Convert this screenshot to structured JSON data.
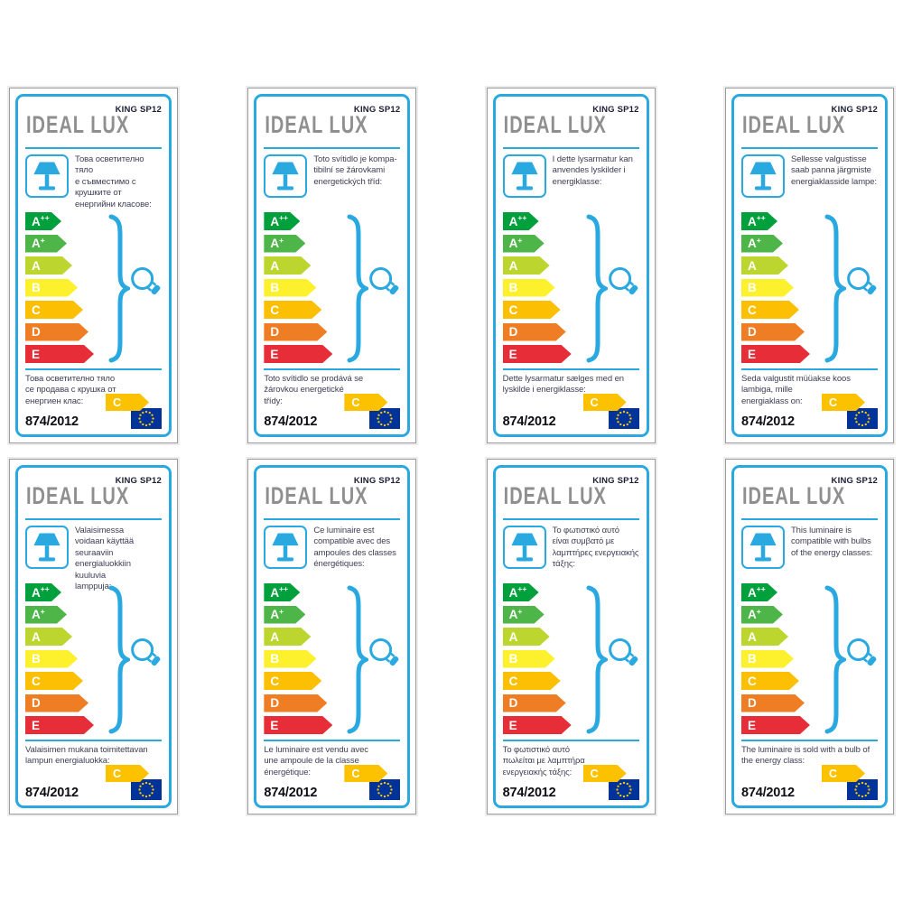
{
  "shared": {
    "brand": "IDEAL LUX",
    "model": "KING SP12",
    "regulation": "874/2012",
    "bulb_class": "C",
    "energy_classes": [
      {
        "label": "A++",
        "color": "#00a03c"
      },
      {
        "label": "A+",
        "color": "#4eb648"
      },
      {
        "label": "A",
        "color": "#bdd62f"
      },
      {
        "label": "B",
        "color": "#fdf02d"
      },
      {
        "label": "C",
        "color": "#fcbf02"
      },
      {
        "label": "D",
        "color": "#ef7d23"
      },
      {
        "label": "E",
        "color": "#e62d38"
      }
    ],
    "colors": {
      "accent_blue": "#2aa9e0",
      "class_arrow_gold": "#fcc200",
      "eu_flag_blue": "#003399",
      "eu_star_yellow": "#ffcc00"
    }
  },
  "labels": [
    {
      "top_text": "Това осветително тяло\nе съвместимо с\nкрушките от\nенергийни класове:",
      "bottom_text": "Това осветително тяло\nсе продава с крушка от\nенергиен клас:"
    },
    {
      "top_text": "Toto svítidlo je kompa-\ntibilní se žárovkami\nenergetických tříd:",
      "bottom_text": "Toto svítidlo se prodává se\nžárovkou energetické\ntřídy:"
    },
    {
      "top_text": "I dette lysarmatur kan\nanvendes lyskilder i\nenergiklasse:",
      "bottom_text": "Dette lysarmatur sælges med en\nlyskilde i energiklasse:"
    },
    {
      "top_text": "Sellesse valgustisse\nsaab panna järgmiste\nenergiaklasside lampe:",
      "bottom_text": "Seda valgustit müüakse koos\nlambiga, mille\nenergiaklass on:"
    },
    {
      "top_text": "Valaisimessa\nvoidaan käyttää\nseuraaviin\nenergialuokkiin kuuluvia\nlamppuja:",
      "bottom_text": "Valaisimen mukana toimitettavan\nlampun energialuokka:"
    },
    {
      "top_text": "Ce luminaire est\ncompatible avec des\nampoules des classes\nénergétiques:",
      "bottom_text": "Le luminaire est vendu avec\nune ampoule de la classe\nénergétique:"
    },
    {
      "top_text": "Το φωτιστικό αυτό\nείναι συμβατό με\nλαμπτήρες ενεργειακής\nτάξης:",
      "bottom_text": "Το φωτιστικό αυτό\nπωλείται με λαμπτήρα\nενεργειακής τάξης:"
    },
    {
      "top_text": "This luminaire is\ncompatible with bulbs\nof the energy classes:",
      "bottom_text": "The luminaire is sold with a bulb of\nthe energy class:"
    }
  ]
}
